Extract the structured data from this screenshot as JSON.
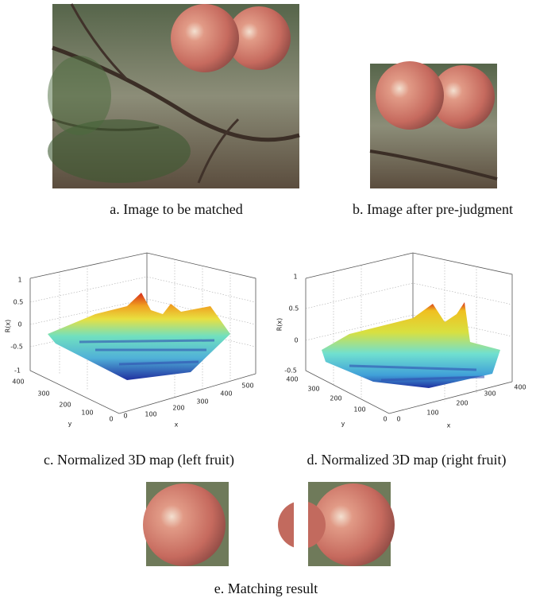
{
  "panels": [
    {
      "caption": "a. Image to be matched"
    },
    {
      "caption": "b. Image after pre-judgment"
    },
    {
      "caption": "c. Normalized 3D map (left fruit)"
    },
    {
      "caption": "d. Normalized 3D map (right fruit)"
    },
    {
      "caption": "e. Matching result"
    }
  ],
  "plots": [
    {
      "zlabel": "R(x)",
      "xlabel": "x",
      "ylabel": "y",
      "zticks": [
        1,
        0.5,
        0,
        -0.5,
        -1
      ],
      "yticks": [
        400,
        300,
        200,
        100,
        0
      ],
      "xticks": [
        0,
        100,
        200,
        300,
        400,
        500
      ]
    },
    {
      "zlabel": "R(x)",
      "xlabel": "x",
      "ylabel": "y",
      "zticks": [
        1,
        0.5,
        0,
        -0.5
      ],
      "yticks": [
        400,
        300,
        200,
        100,
        0
      ],
      "xticks": [
        0,
        100,
        200,
        300,
        400
      ]
    }
  ]
}
